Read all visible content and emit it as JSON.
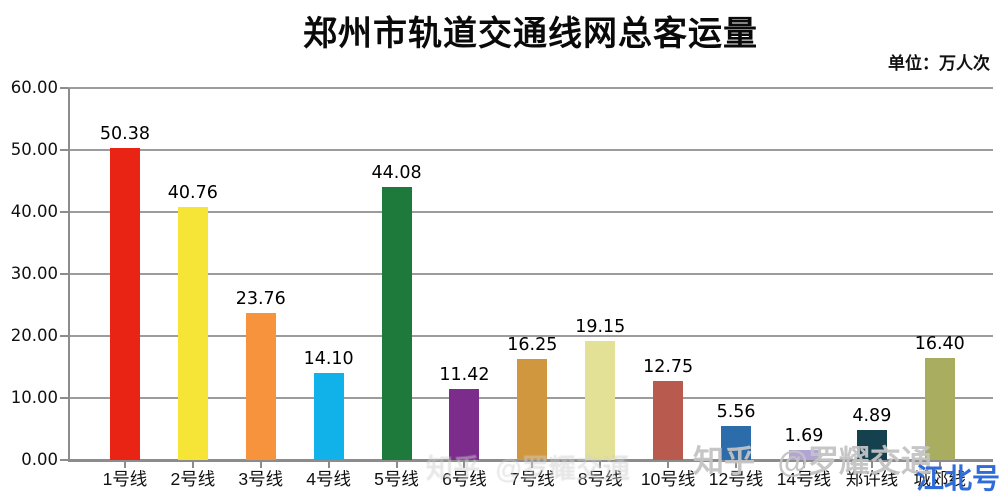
{
  "title": "郑州市轨道交通线网总客运量",
  "unit_label": "单位：万人次",
  "watermark": {
    "main": "知乎 @罗耀交通",
    "corner": "江北号"
  },
  "chart_data": {
    "type": "bar",
    "title": "郑州市轨道交通线网总客运量",
    "unit": "万人次",
    "categories": [
      "1号线",
      "2号线",
      "3号线",
      "4号线",
      "5号线",
      "6号线",
      "7号线",
      "8号线",
      "10号线",
      "12号线",
      "14号线",
      "郑许线",
      "城郊线"
    ],
    "values": [
      50.38,
      40.76,
      23.76,
      14.1,
      44.08,
      11.42,
      16.25,
      19.15,
      12.75,
      5.56,
      1.69,
      4.89,
      16.4
    ],
    "value_labels": [
      "50.38",
      "40.76",
      "23.76",
      "14.10",
      "44.08",
      "11.42",
      "16.25",
      "19.15",
      "12.75",
      "5.56",
      "1.69",
      "4.89",
      "16.40"
    ],
    "bar_colors": [
      "#ea2415",
      "#f6e436",
      "#f6933c",
      "#10b2e9",
      "#1d7a3b",
      "#7c2d8c",
      "#d0973f",
      "#e2e195",
      "#b85a4d",
      "#2d6cab",
      "#b2a4d4",
      "#15414e",
      "#a8ad60"
    ],
    "xlabel": "",
    "ylabel": "",
    "ylim": [
      0,
      60
    ],
    "yticks": [
      "0.00",
      "10.00",
      "20.00",
      "30.00",
      "40.00",
      "50.00",
      "60.00"
    ],
    "grid": true,
    "legend": false
  }
}
